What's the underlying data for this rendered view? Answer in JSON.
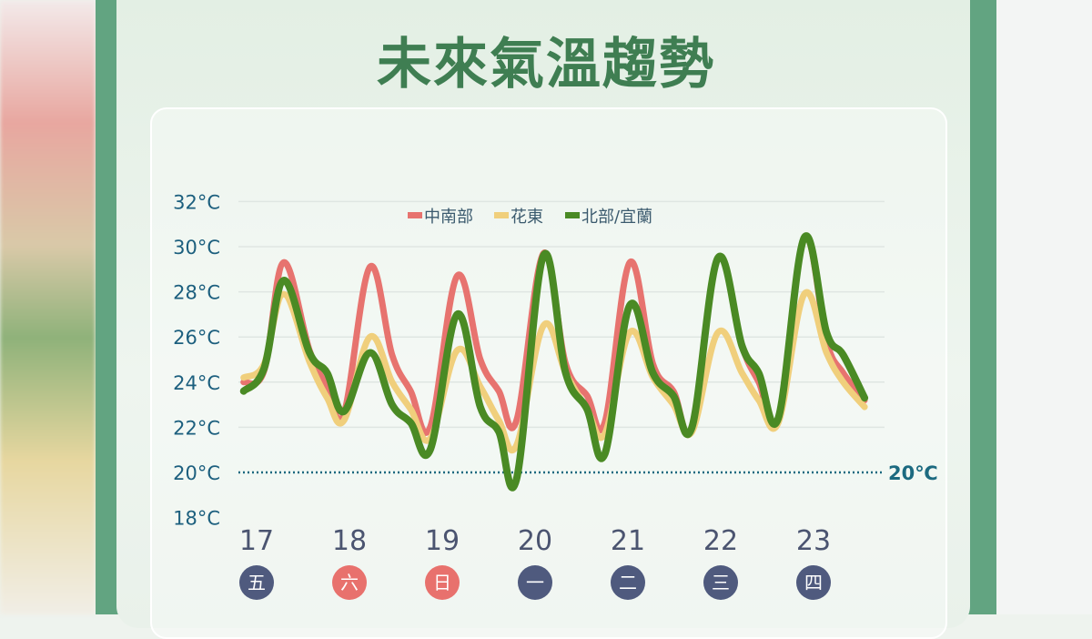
{
  "title": "未來氣溫趨勢",
  "chart_data": {
    "type": "line",
    "title": "未來氣溫趨勢",
    "ylim": [
      18,
      32
    ],
    "yticks": [
      "18°C",
      "20°C",
      "22°C",
      "24°C",
      "26°C",
      "28°C",
      "30°C",
      "32°C"
    ],
    "ytick_values": [
      18,
      20,
      22,
      24,
      26,
      28,
      30,
      32
    ],
    "xticks": [
      17,
      18,
      19,
      20,
      21,
      22,
      23
    ],
    "xtick_labels": [
      "17",
      "18",
      "19",
      "20",
      "21",
      "22",
      "23"
    ],
    "weekdays": [
      {
        "label": "五",
        "color": "#4f5a7e"
      },
      {
        "label": "六",
        "color": "#e8716d"
      },
      {
        "label": "日",
        "color": "#e8716d"
      },
      {
        "label": "一",
        "color": "#4f5a7e"
      },
      {
        "label": "二",
        "color": "#4f5a7e"
      },
      {
        "label": "三",
        "color": "#4f5a7e"
      },
      {
        "label": "四",
        "color": "#4f5a7e"
      }
    ],
    "grid": true,
    "legend_position": "top-center",
    "reference_line": {
      "value": 20,
      "label": "20℃",
      "color": "#1c6a80"
    },
    "x": [
      16.86,
      17.08,
      17.29,
      17.57,
      17.76,
      17.94,
      18.22,
      18.46,
      18.66,
      18.87,
      19.16,
      19.41,
      19.61,
      19.8,
      20.09,
      20.33,
      20.56,
      20.75,
      21.02,
      21.27,
      21.49,
      21.69,
      21.97,
      22.23,
      22.41,
      22.62,
      22.9,
      23.14,
      23.32,
      23.55
    ],
    "series": [
      {
        "name": "中南部",
        "color": "#e7736f",
        "values": [
          24.0,
          24.5,
          29.3,
          25.4,
          23.8,
          22.6,
          29.1,
          25.2,
          23.6,
          22.0,
          28.7,
          25.0,
          23.6,
          22.3,
          29.7,
          24.8,
          23.4,
          22.2,
          29.3,
          24.8,
          23.6,
          22.0,
          29.5,
          25.6,
          24.0,
          22.4,
          30.4,
          25.8,
          24.4,
          23.2
        ]
      },
      {
        "name": "花東",
        "color": "#f0cf7c",
        "values": [
          24.2,
          24.8,
          27.9,
          24.9,
          23.3,
          22.3,
          26.0,
          24.0,
          22.8,
          21.5,
          25.4,
          23.8,
          22.3,
          21.2,
          26.5,
          24.4,
          22.8,
          21.7,
          26.2,
          24.2,
          23.0,
          21.8,
          26.2,
          24.4,
          23.2,
          22.2,
          27.9,
          25.3,
          24.0,
          22.9
        ]
      },
      {
        "name": "北部/宜蘭",
        "color": "#4a8a24",
        "values": [
          23.6,
          24.6,
          28.5,
          25.3,
          24.4,
          22.7,
          25.3,
          23.0,
          22.2,
          21.0,
          27.0,
          22.9,
          21.8,
          19.7,
          29.6,
          24.4,
          22.8,
          20.8,
          27.4,
          24.4,
          23.4,
          22.0,
          29.5,
          25.6,
          24.4,
          22.4,
          30.4,
          26.2,
          25.2,
          23.3
        ]
      }
    ]
  }
}
